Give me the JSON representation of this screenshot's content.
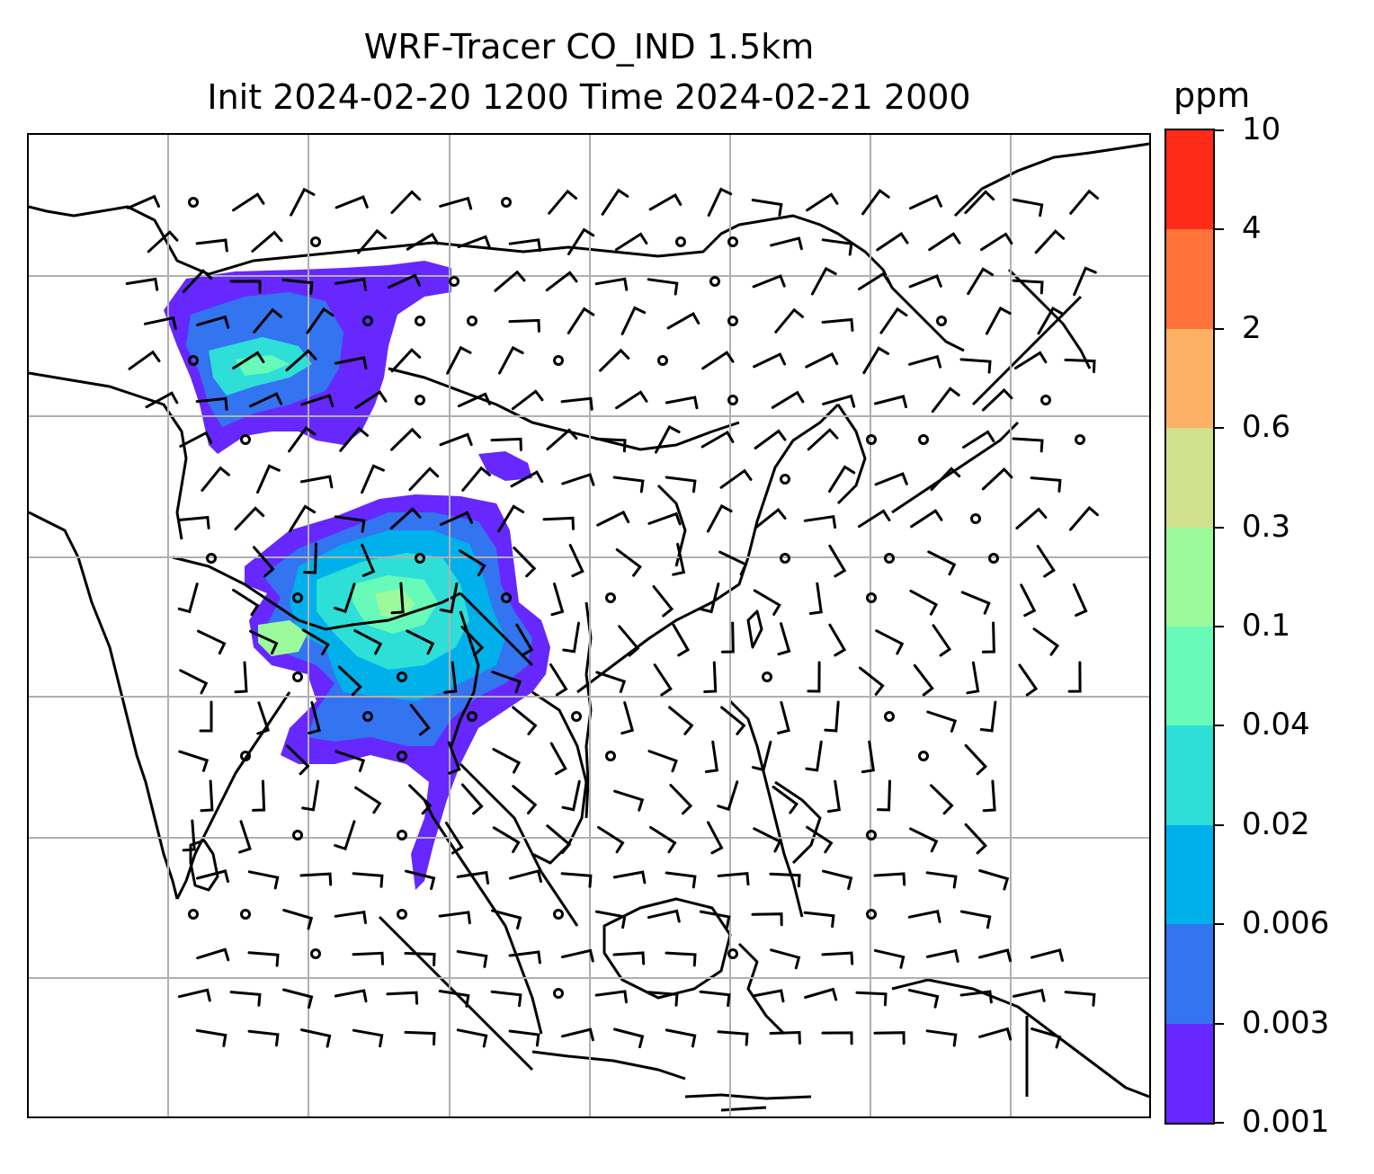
{
  "title": {
    "line1": "WRF-Tracer CO_IND 1.5km",
    "line2": "Init 2024-02-20 1200 Time 2024-02-21 2000"
  },
  "colorbar": {
    "unit": "ppm",
    "levels": [
      "0.001",
      "0.003",
      "0.006",
      "0.02",
      "0.04",
      "0.1",
      "0.3",
      "0.6",
      "2",
      "4",
      "10"
    ],
    "colors": [
      "#6628fe",
      "#3374f1",
      "#00b0ea",
      "#2ddfd7",
      "#67fab9",
      "#9cfa9c",
      "#d0e08c",
      "#fdb165",
      "#ff7239",
      "#ff2a17"
    ]
  },
  "map": {
    "field": "CO_IND tracer concentration",
    "features": [
      "coastlines",
      "country borders",
      "lat-lon gridlines",
      "wind barbs",
      "calm-wind circles"
    ],
    "gridlines": true,
    "colors": {
      "coastline": "#000000",
      "gridline": "#b0b0b0",
      "wind_barb": "#000000"
    }
  }
}
